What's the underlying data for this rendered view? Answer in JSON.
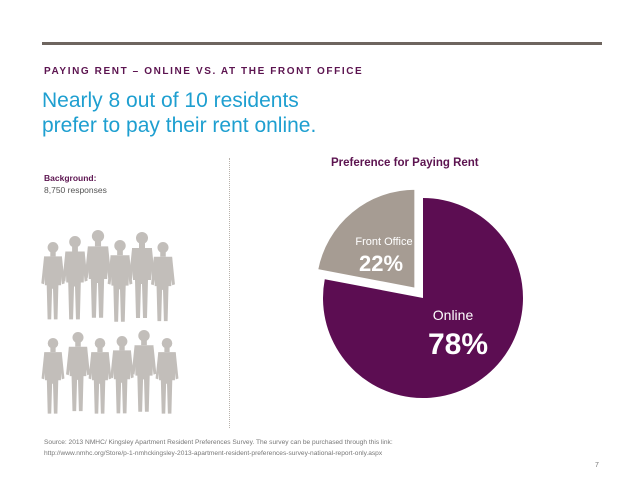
{
  "header": {
    "kicker": "PAYING RENT – ONLINE VS. AT THE FRONT OFFICE",
    "headline_line1": "Nearly 8 out of 10 residents",
    "headline_line2": "prefer to pay their rent online."
  },
  "background": {
    "label": "Background:",
    "value": "8,750 responses"
  },
  "colors": {
    "accent": "#5c1450",
    "headline": "#1e9fd0",
    "online": "#5c0d52",
    "front_office": "#a69c93",
    "rule": "#6e655f",
    "silhouette": "#c2beba"
  },
  "chart_data": {
    "type": "pie",
    "title": "Preference for Paying Rent",
    "slices": [
      {
        "label": "Online",
        "value": 78,
        "value_label": "78%",
        "color": "#5c0d52",
        "exploded": false
      },
      {
        "label": "Front Office",
        "value": 22,
        "value_label": "22%",
        "color": "#a69c93",
        "exploded": true
      }
    ]
  },
  "footer": {
    "source_line1": "Source: 2013 NMHC/ Kingsley Apartment Resident Preferences Survey. The survey can be purchased through this link:",
    "source_line2": "http://www.nmhc.org/Store/p-1-nmhckingsley-2013-apartment-resident-preferences-survey-national-report-only.aspx",
    "page_number": "7"
  }
}
